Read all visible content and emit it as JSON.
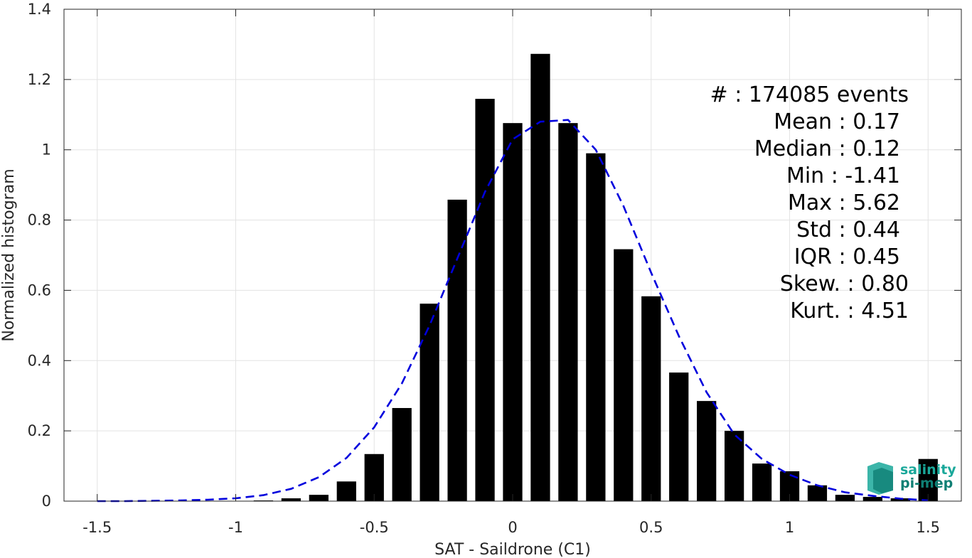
{
  "chart_data": {
    "type": "bar",
    "xlabel": "SAT - Saildrone (C1)",
    "ylabel": "Normalized histogram",
    "xlim": [
      -1.62,
      1.62
    ],
    "ylim": [
      0,
      1.4
    ],
    "xticks": [
      "-1.5",
      "-1",
      "-0.5",
      "0",
      "0.5",
      "1",
      "1.5"
    ],
    "xtick_values": [
      -1.5,
      -1,
      -0.5,
      0,
      0.5,
      1,
      1.5
    ],
    "yticks": [
      "0",
      "0.2",
      "0.4",
      "0.6",
      "0.8",
      "1",
      "1.2",
      "1.4"
    ],
    "ytick_values": [
      0,
      0.2,
      0.4,
      0.6,
      0.8,
      1,
      1.2,
      1.4
    ],
    "grid": true,
    "bar_width": 0.07,
    "histogram": {
      "x": [
        -1.5,
        -1.4,
        -1.3,
        -1.2,
        -1.1,
        -1.0,
        -0.9,
        -0.8,
        -0.7,
        -0.6,
        -0.5,
        -0.4,
        -0.3,
        -0.2,
        -0.1,
        0.0,
        0.1,
        0.2,
        0.3,
        0.4,
        0.5,
        0.6,
        0.7,
        0.8,
        0.9,
        1.0,
        1.1,
        1.2,
        1.3,
        1.4,
        1.5
      ],
      "values": [
        0,
        0,
        0,
        0,
        0,
        0,
        0.002,
        0.008,
        0.018,
        0.056,
        0.134,
        0.265,
        0.562,
        0.858,
        1.145,
        1.076,
        1.273,
        1.076,
        0.99,
        0.717,
        0.583,
        0.366,
        0.285,
        0.2,
        0.107,
        0.085,
        0.045,
        0.018,
        0.012,
        0.008,
        0.12
      ]
    },
    "fit_curve": {
      "style": "dashed",
      "color": "#0000dd",
      "x": [
        -1.5,
        -1.4,
        -1.3,
        -1.2,
        -1.1,
        -1.0,
        -0.9,
        -0.8,
        -0.7,
        -0.6,
        -0.5,
        -0.4,
        -0.3,
        -0.2,
        -0.1,
        0.0,
        0.1,
        0.2,
        0.3,
        0.4,
        0.5,
        0.6,
        0.7,
        0.8,
        0.9,
        1.0,
        1.1,
        1.2,
        1.3,
        1.4,
        1.5
      ],
      "values": [
        0.0,
        0.0,
        0.001,
        0.002,
        0.004,
        0.008,
        0.017,
        0.035,
        0.068,
        0.123,
        0.21,
        0.335,
        0.5,
        0.69,
        0.88,
        1.03,
        1.08,
        1.085,
        1.0,
        0.84,
        0.65,
        0.47,
        0.31,
        0.19,
        0.12,
        0.075,
        0.045,
        0.025,
        0.015,
        0.007,
        0.002
      ]
    },
    "bar_color": "#000000"
  },
  "stats": [
    {
      "label": "#  : 174085 events",
      "anchor": "end",
      "right": 1278
    },
    {
      "label": "Mean : 0.17",
      "anchor": "end",
      "right": 1266
    },
    {
      "label": "Median : 0.12",
      "anchor": "end",
      "right": 1266
    },
    {
      "label": "Min : -1.41",
      "anchor": "end",
      "right": 1266
    },
    {
      "label": "Max : 5.62",
      "anchor": "end",
      "right": 1266
    },
    {
      "label": "Std : 0.44",
      "anchor": "end",
      "right": 1266
    },
    {
      "label": "IQR : 0.45",
      "anchor": "end",
      "right": 1266
    },
    {
      "label": "Skew. : 0.80",
      "anchor": "end",
      "right": 1278
    },
    {
      "label": "Kurt. : 4.51",
      "anchor": "end",
      "right": 1278
    }
  ],
  "logo": {
    "line1": "salinity",
    "line2": "pi-mep",
    "color": "#1aa89a"
  }
}
